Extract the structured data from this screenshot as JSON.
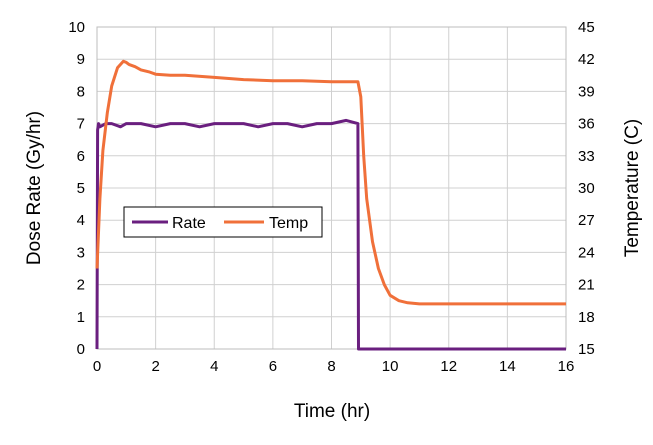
{
  "chart_data": {
    "type": "line",
    "xlabel": "Time (hr)",
    "ylabel_left": "Dose Rate (Gy/hr)",
    "ylabel_right": "Temperature (C)",
    "x_ticks": [
      0,
      2,
      4,
      6,
      8,
      10,
      12,
      14,
      16
    ],
    "y_left_ticks": [
      0,
      1,
      2,
      3,
      4,
      5,
      6,
      7,
      8,
      9,
      10
    ],
    "y_right_ticks": [
      15,
      18,
      21,
      24,
      27,
      30,
      33,
      36,
      39,
      42,
      45
    ],
    "xlim": [
      0,
      16
    ],
    "ylim_left": [
      0,
      10
    ],
    "ylim_right": [
      15,
      45
    ],
    "grid": true,
    "legend_position": "center-left",
    "series": [
      {
        "name": "Rate",
        "axis": "left",
        "color": "#6a1f7f",
        "x": [
          0,
          0.02,
          0.05,
          0.1,
          0.3,
          0.5,
          0.8,
          1.0,
          1.5,
          2.0,
          2.5,
          3.0,
          3.5,
          4.0,
          4.5,
          5.0,
          5.5,
          6.0,
          6.5,
          7.0,
          7.5,
          8.0,
          8.5,
          8.9,
          8.92,
          10,
          12,
          14,
          16
        ],
        "y": [
          0,
          6.8,
          7.0,
          6.9,
          7.0,
          7.0,
          6.9,
          7.0,
          7.0,
          6.9,
          7.0,
          7.0,
          6.9,
          7.0,
          7.0,
          7.0,
          6.9,
          7.0,
          7.0,
          6.9,
          7.0,
          7.0,
          7.1,
          7.0,
          0,
          0,
          0,
          0,
          0
        ]
      },
      {
        "name": "Temp",
        "axis": "right",
        "color": "#f0703a",
        "x": [
          0,
          0.1,
          0.2,
          0.35,
          0.5,
          0.7,
          0.9,
          1.0,
          1.1,
          1.3,
          1.5,
          1.8,
          2.0,
          2.5,
          3.0,
          4.0,
          5.0,
          6.0,
          7.0,
          8.0,
          8.9,
          9.0,
          9.1,
          9.2,
          9.4,
          9.6,
          9.8,
          10.0,
          10.3,
          10.6,
          11.0,
          12.0,
          13.0,
          14.0,
          15.0,
          16.0
        ],
        "y": [
          22.5,
          29.0,
          33.5,
          37.0,
          39.5,
          41.2,
          41.8,
          41.7,
          41.5,
          41.3,
          41.0,
          40.8,
          40.6,
          40.5,
          40.5,
          40.3,
          40.1,
          40.0,
          40.0,
          39.9,
          39.9,
          38.5,
          33.0,
          29.0,
          25.0,
          22.5,
          21.0,
          20.0,
          19.5,
          19.3,
          19.2,
          19.2,
          19.2,
          19.2,
          19.2,
          19.2
        ]
      }
    ]
  }
}
